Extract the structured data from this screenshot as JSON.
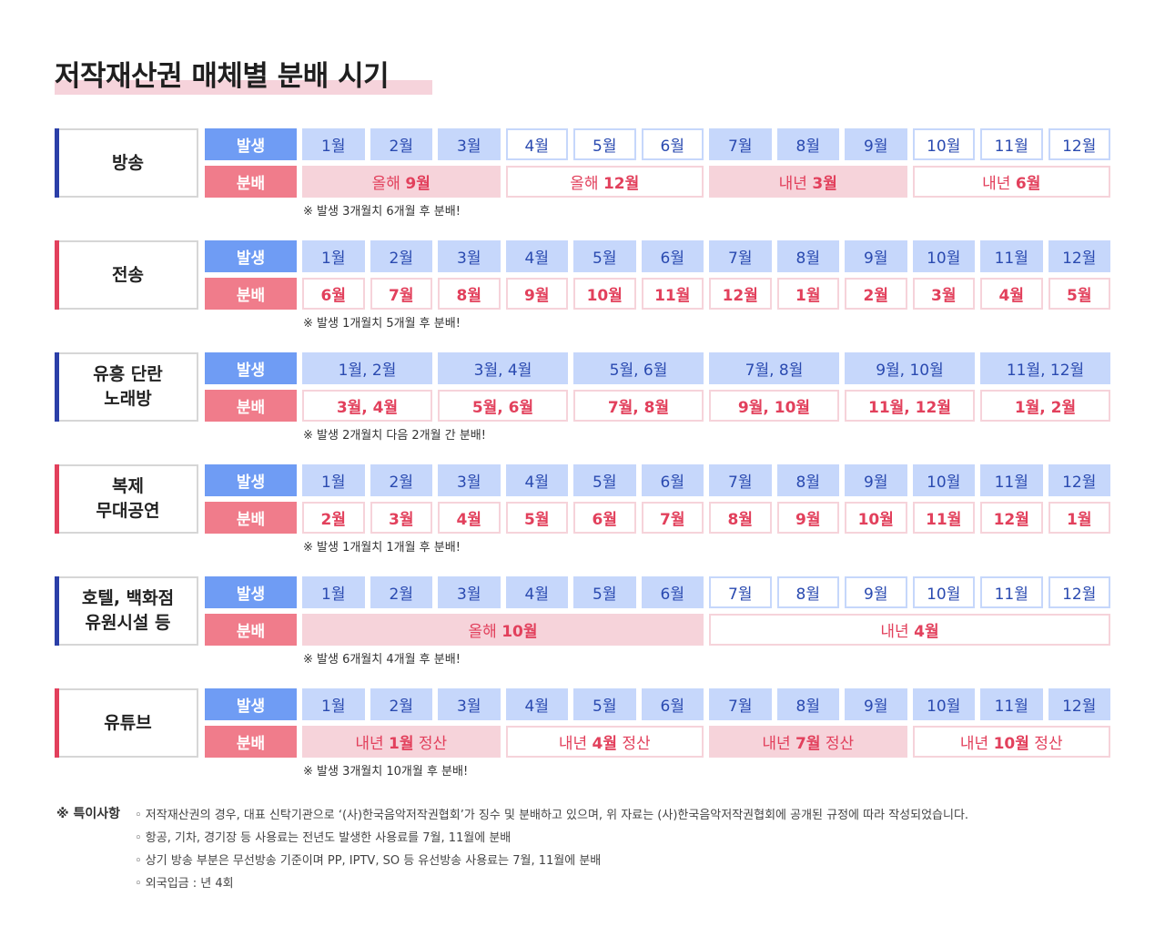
{
  "title": "저작재산권 매체별 분배 시기",
  "labels": {
    "occurrence": "발생",
    "distribution": "분배"
  },
  "colors": {
    "blue_label": "#6f9cf4",
    "red_label": "#f07c8b",
    "blue_cell": "#c6d7fb",
    "pink_cell": "#f6d3da",
    "blue_text": "#2a4ab0",
    "red_text": "#e2405c",
    "navy_bar": "#2b3fa8",
    "red_bar": "#e2405c"
  },
  "sections": [
    {
      "name": "방송",
      "occurrence": [
        {
          "text": "1월",
          "style": "fill"
        },
        {
          "text": "2월",
          "style": "fill"
        },
        {
          "text": "3월",
          "style": "fill"
        },
        {
          "text": "4월",
          "style": "outline"
        },
        {
          "text": "5월",
          "style": "outline"
        },
        {
          "text": "6월",
          "style": "outline"
        },
        {
          "text": "7월",
          "style": "fill"
        },
        {
          "text": "8월",
          "style": "fill"
        },
        {
          "text": "9월",
          "style": "fill"
        },
        {
          "text": "10월",
          "style": "outline"
        },
        {
          "text": "11월",
          "style": "outline"
        },
        {
          "text": "12월",
          "style": "outline"
        }
      ],
      "distribution": [
        {
          "prefix": "올해 ",
          "num": "9월",
          "suffix": "",
          "span": 3,
          "style": "fill"
        },
        {
          "prefix": "올해 ",
          "num": "12월",
          "suffix": "",
          "span": 3,
          "style": "outline"
        },
        {
          "prefix": "내년 ",
          "num": "3월",
          "suffix": "",
          "span": 3,
          "style": "fill"
        },
        {
          "prefix": "내년 ",
          "num": "6월",
          "suffix": "",
          "span": 3,
          "style": "outline"
        }
      ],
      "note": "※ 발생 3개월치 6개월 후 분배!"
    },
    {
      "name": "전송",
      "occurrence": [
        {
          "text": "1월",
          "style": "fill"
        },
        {
          "text": "2월",
          "style": "fill"
        },
        {
          "text": "3월",
          "style": "fill"
        },
        {
          "text": "4월",
          "style": "fill"
        },
        {
          "text": "5월",
          "style": "fill"
        },
        {
          "text": "6월",
          "style": "fill"
        },
        {
          "text": "7월",
          "style": "fill"
        },
        {
          "text": "8월",
          "style": "fill"
        },
        {
          "text": "9월",
          "style": "fill"
        },
        {
          "text": "10월",
          "style": "fill"
        },
        {
          "text": "11월",
          "style": "fill"
        },
        {
          "text": "12월",
          "style": "fill"
        }
      ],
      "distribution": [
        {
          "prefix": "",
          "num": "6월",
          "suffix": "",
          "span": 1,
          "style": "outline"
        },
        {
          "prefix": "",
          "num": "7월",
          "suffix": "",
          "span": 1,
          "style": "outline"
        },
        {
          "prefix": "",
          "num": "8월",
          "suffix": "",
          "span": 1,
          "style": "outline"
        },
        {
          "prefix": "",
          "num": "9월",
          "suffix": "",
          "span": 1,
          "style": "outline"
        },
        {
          "prefix": "",
          "num": "10월",
          "suffix": "",
          "span": 1,
          "style": "outline"
        },
        {
          "prefix": "",
          "num": "11월",
          "suffix": "",
          "span": 1,
          "style": "outline"
        },
        {
          "prefix": "",
          "num": "12월",
          "suffix": "",
          "span": 1,
          "style": "outline"
        },
        {
          "prefix": "",
          "num": "1월",
          "suffix": "",
          "span": 1,
          "style": "outline"
        },
        {
          "prefix": "",
          "num": "2월",
          "suffix": "",
          "span": 1,
          "style": "outline"
        },
        {
          "prefix": "",
          "num": "3월",
          "suffix": "",
          "span": 1,
          "style": "outline"
        },
        {
          "prefix": "",
          "num": "4월",
          "suffix": "",
          "span": 1,
          "style": "outline"
        },
        {
          "prefix": "",
          "num": "5월",
          "suffix": "",
          "span": 1,
          "style": "outline"
        }
      ],
      "note": "※ 발생 1개월치 5개월 후 분배!"
    },
    {
      "name": "유흥 단란\n노래방",
      "occurrence": [
        {
          "text": "1월, 2월",
          "style": "fill",
          "span": 2
        },
        {
          "text": "3월, 4월",
          "style": "fill",
          "span": 2
        },
        {
          "text": "5월, 6월",
          "style": "fill",
          "span": 2
        },
        {
          "text": "7월, 8월",
          "style": "fill",
          "span": 2
        },
        {
          "text": "9월, 10월",
          "style": "fill",
          "span": 2
        },
        {
          "text": "11월, 12월",
          "style": "fill",
          "span": 2
        }
      ],
      "distribution": [
        {
          "prefix": "",
          "num": "3월, 4월",
          "suffix": "",
          "span": 2,
          "style": "outline"
        },
        {
          "prefix": "",
          "num": "5월, 6월",
          "suffix": "",
          "span": 2,
          "style": "outline"
        },
        {
          "prefix": "",
          "num": "7월, 8월",
          "suffix": "",
          "span": 2,
          "style": "outline"
        },
        {
          "prefix": "",
          "num": "9월, 10월",
          "suffix": "",
          "span": 2,
          "style": "outline"
        },
        {
          "prefix": "",
          "num": "11월, 12월",
          "suffix": "",
          "span": 2,
          "style": "outline"
        },
        {
          "prefix": "",
          "num": "1월, 2월",
          "suffix": "",
          "span": 2,
          "style": "outline"
        }
      ],
      "note": "※ 발생 2개월치 다음 2개월 간 분배!"
    },
    {
      "name": "복제\n무대공연",
      "occurrence": [
        {
          "text": "1월",
          "style": "fill"
        },
        {
          "text": "2월",
          "style": "fill"
        },
        {
          "text": "3월",
          "style": "fill"
        },
        {
          "text": "4월",
          "style": "fill"
        },
        {
          "text": "5월",
          "style": "fill"
        },
        {
          "text": "6월",
          "style": "fill"
        },
        {
          "text": "7월",
          "style": "fill"
        },
        {
          "text": "8월",
          "style": "fill"
        },
        {
          "text": "9월",
          "style": "fill"
        },
        {
          "text": "10월",
          "style": "fill"
        },
        {
          "text": "11월",
          "style": "fill"
        },
        {
          "text": "12월",
          "style": "fill"
        }
      ],
      "distribution": [
        {
          "prefix": "",
          "num": "2월",
          "suffix": "",
          "span": 1,
          "style": "outline"
        },
        {
          "prefix": "",
          "num": "3월",
          "suffix": "",
          "span": 1,
          "style": "outline"
        },
        {
          "prefix": "",
          "num": "4월",
          "suffix": "",
          "span": 1,
          "style": "outline"
        },
        {
          "prefix": "",
          "num": "5월",
          "suffix": "",
          "span": 1,
          "style": "outline"
        },
        {
          "prefix": "",
          "num": "6월",
          "suffix": "",
          "span": 1,
          "style": "outline"
        },
        {
          "prefix": "",
          "num": "7월",
          "suffix": "",
          "span": 1,
          "style": "outline"
        },
        {
          "prefix": "",
          "num": "8월",
          "suffix": "",
          "span": 1,
          "style": "outline"
        },
        {
          "prefix": "",
          "num": "9월",
          "suffix": "",
          "span": 1,
          "style": "outline"
        },
        {
          "prefix": "",
          "num": "10월",
          "suffix": "",
          "span": 1,
          "style": "outline"
        },
        {
          "prefix": "",
          "num": "11월",
          "suffix": "",
          "span": 1,
          "style": "outline"
        },
        {
          "prefix": "",
          "num": "12월",
          "suffix": "",
          "span": 1,
          "style": "outline"
        },
        {
          "prefix": "",
          "num": "1월",
          "suffix": "",
          "span": 1,
          "style": "outline"
        }
      ],
      "note": "※ 발생 1개월치 1개월 후 분배!"
    },
    {
      "name": "호텔, 백화점\n유원시설 등",
      "occurrence": [
        {
          "text": "1월",
          "style": "fill"
        },
        {
          "text": "2월",
          "style": "fill"
        },
        {
          "text": "3월",
          "style": "fill"
        },
        {
          "text": "4월",
          "style": "fill"
        },
        {
          "text": "5월",
          "style": "fill"
        },
        {
          "text": "6월",
          "style": "fill"
        },
        {
          "text": "7월",
          "style": "outline"
        },
        {
          "text": "8월",
          "style": "outline"
        },
        {
          "text": "9월",
          "style": "outline"
        },
        {
          "text": "10월",
          "style": "outline"
        },
        {
          "text": "11월",
          "style": "outline"
        },
        {
          "text": "12월",
          "style": "outline"
        }
      ],
      "distribution": [
        {
          "prefix": "올해 ",
          "num": "10월",
          "suffix": "",
          "span": 6,
          "style": "fill"
        },
        {
          "prefix": "내년 ",
          "num": "4월",
          "suffix": "",
          "span": 6,
          "style": "outline"
        }
      ],
      "note": "※ 발생 6개월치 4개월 후 분배!"
    },
    {
      "name": "유튜브",
      "occurrence": [
        {
          "text": "1월",
          "style": "fill"
        },
        {
          "text": "2월",
          "style": "fill"
        },
        {
          "text": "3월",
          "style": "fill"
        },
        {
          "text": "4월",
          "style": "fill"
        },
        {
          "text": "5월",
          "style": "fill"
        },
        {
          "text": "6월",
          "style": "fill"
        },
        {
          "text": "7월",
          "style": "fill"
        },
        {
          "text": "8월",
          "style": "fill"
        },
        {
          "text": "9월",
          "style": "fill"
        },
        {
          "text": "10월",
          "style": "fill"
        },
        {
          "text": "11월",
          "style": "fill"
        },
        {
          "text": "12월",
          "style": "fill"
        }
      ],
      "distribution": [
        {
          "prefix": "내년 ",
          "num": "1월",
          "suffix": " 정산",
          "span": 3,
          "style": "fill"
        },
        {
          "prefix": "내년 ",
          "num": "4월",
          "suffix": " 정산",
          "span": 3,
          "style": "outline"
        },
        {
          "prefix": "내년 ",
          "num": "7월",
          "suffix": " 정산",
          "span": 3,
          "style": "fill"
        },
        {
          "prefix": "내년 ",
          "num": "10월",
          "suffix": " 정산",
          "span": 3,
          "style": "outline"
        }
      ],
      "note": "※ 발생 3개월치 10개월 후 분배!"
    }
  ],
  "remarks": {
    "title": "※ 특이사항",
    "items": [
      "◦ 저작재산권의 경우, 대표 신탁기관으로 ‘(사)한국음악저작권협회’가 징수 및 분배하고 있으며, 위 자료는 (사)한국음악저작권협회에 공개된 규정에 따라 작성되었습니다.",
      "◦ 항공, 기차, 경기장 등 사용료는 전년도 발생한 사용료를 7월, 11월에 분배",
      "◦ 상기 방송 부분은 무선방송 기준이며 PP, IPTV, SO 등 유선방송 사용료는 7월, 11월에 분배",
      "◦ 외국입금 : 년 4회"
    ]
  }
}
